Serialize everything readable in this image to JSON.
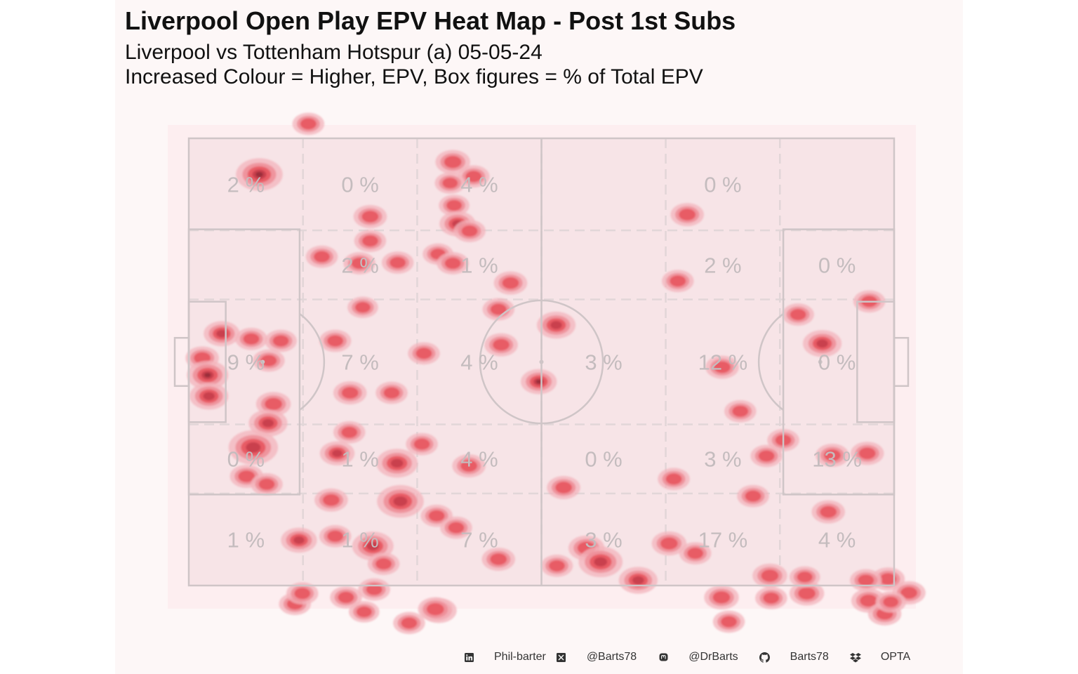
{
  "header": {
    "title": "Liverpool Open Play EPV Heat Map - Post 1st Subs",
    "subtitle_line1": "Liverpool vs Tottenham Hotspur (a) 05-05-24",
    "subtitle_line2": "Increased Colour = Higher, EPV, Box figures = % of Total EPV"
  },
  "footer": {
    "items": [
      {
        "icon": "linkedin-icon",
        "label": "Phil-barter"
      },
      {
        "icon": "x-twitter-icon",
        "label": "@Barts78"
      },
      {
        "icon": "mastodon-icon",
        "label": "@DrBarts"
      },
      {
        "icon": "github-icon",
        "label": "Barts78"
      },
      {
        "icon": "dropbox-icon",
        "label": "OPTA"
      }
    ]
  },
  "colors": {
    "panel_background": "#fdf7f7",
    "pitch_background": "#fdeef0",
    "pitch_lines": "#cfc5c7",
    "zone_dash": "#e2d6d8",
    "zone_label": "#c4bcbe",
    "heat_low": "#f3b4bc",
    "heat_mid": "#e85a62",
    "heat_high": "#9a2d3a"
  },
  "chart_data": {
    "type": "heatmap",
    "title": "Liverpool Open Play EPV Heat Map - Post 1st Subs",
    "x_range": [
      0,
      105
    ],
    "y_range": [
      0,
      68
    ],
    "zone_x_edges": [
      0,
      17,
      34,
      52.5,
      71,
      88,
      105
    ],
    "zone_y_edges": [
      0,
      14,
      24.5,
      43.5,
      54,
      68
    ],
    "zone_rows": [
      [
        "2 %",
        "0 %",
        "4 %",
        "",
        "0 %",
        ""
      ],
      [
        "",
        "2 %",
        "1 %",
        "",
        "2 %",
        "0 %"
      ],
      [
        "9 %",
        "7 %",
        "4 %",
        "3 %",
        "12 %",
        "0 %"
      ],
      [
        "0 %",
        "1 %",
        "4 %",
        "0 %",
        "3 %",
        "13 %"
      ],
      [
        "1 %",
        "1 %",
        "7 %",
        "3 %",
        "17 %",
        "4 %"
      ]
    ],
    "hotspots": [
      [
        17.8,
        70.2,
        1.1,
        0.28
      ],
      [
        10.5,
        62.5,
        2.2,
        0.85
      ],
      [
        27.0,
        56.1,
        1.2,
        0.45
      ],
      [
        39.3,
        64.4,
        1.3,
        0.55
      ],
      [
        42.4,
        62.2,
        1.1,
        0.45
      ],
      [
        38.9,
        61.2,
        1.0,
        0.4
      ],
      [
        39.5,
        57.8,
        1.0,
        0.42
      ],
      [
        40.0,
        55.0,
        1.4,
        0.6
      ],
      [
        41.8,
        53.9,
        1.1,
        0.45
      ],
      [
        74.2,
        56.4,
        1.2,
        0.5
      ],
      [
        19.8,
        50.0,
        1.1,
        0.45
      ],
      [
        27.0,
        52.4,
        1.1,
        0.45
      ],
      [
        25.4,
        49.0,
        1.1,
        0.45
      ],
      [
        31.1,
        49.1,
        1.1,
        0.45
      ],
      [
        37.1,
        50.4,
        1.0,
        0.42
      ],
      [
        39.3,
        49.0,
        1.1,
        0.45
      ],
      [
        47.9,
        46.0,
        1.2,
        0.5
      ],
      [
        72.8,
        46.3,
        1.1,
        0.45
      ],
      [
        46.1,
        42.0,
        1.1,
        0.45
      ],
      [
        25.9,
        42.3,
        1.0,
        0.42
      ],
      [
        90.7,
        41.2,
        1.1,
        0.45
      ],
      [
        101.3,
        43.2,
        1.1,
        0.45
      ],
      [
        4.9,
        38.3,
        1.4,
        0.65
      ],
      [
        9.3,
        37.5,
        1.1,
        0.45
      ],
      [
        13.7,
        37.2,
        1.1,
        0.45
      ],
      [
        11.9,
        34.2,
        1.1,
        0.45
      ],
      [
        2.0,
        34.6,
        1.2,
        0.55
      ],
      [
        2.8,
        32.0,
        1.8,
        0.85
      ],
      [
        3.0,
        28.8,
        1.6,
        0.75
      ],
      [
        21.8,
        37.2,
        1.1,
        0.45
      ],
      [
        35.0,
        35.3,
        1.1,
        0.45
      ],
      [
        46.5,
        36.6,
        1.2,
        0.5
      ],
      [
        54.7,
        39.6,
        1.6,
        0.7
      ],
      [
        52.1,
        31.0,
        1.4,
        0.95
      ],
      [
        79.4,
        33.2,
        1.2,
        0.55
      ],
      [
        94.3,
        36.8,
        1.6,
        0.75
      ],
      [
        24.0,
        29.3,
        1.2,
        0.5
      ],
      [
        30.2,
        29.3,
        1.1,
        0.45
      ],
      [
        12.6,
        27.6,
        1.3,
        0.55
      ],
      [
        11.8,
        24.7,
        1.6,
        0.7
      ],
      [
        9.6,
        21.0,
        2.4,
        0.8
      ],
      [
        8.6,
        16.6,
        1.2,
        0.5
      ],
      [
        11.6,
        15.4,
        1.1,
        0.45
      ],
      [
        23.9,
        23.3,
        1.1,
        0.45
      ],
      [
        22.1,
        20.1,
        1.3,
        0.6
      ],
      [
        31.0,
        18.6,
        1.8,
        0.65
      ],
      [
        34.7,
        21.5,
        1.1,
        0.45
      ],
      [
        41.7,
        18.2,
        1.2,
        0.5
      ],
      [
        82.1,
        26.5,
        1.1,
        0.45
      ],
      [
        88.5,
        22.1,
        1.1,
        0.45
      ],
      [
        86.0,
        19.7,
        1.1,
        0.45
      ],
      [
        95.8,
        19.8,
        1.2,
        0.5
      ],
      [
        101.0,
        20.1,
        1.2,
        0.5
      ],
      [
        55.8,
        14.9,
        1.2,
        0.5
      ],
      [
        72.2,
        16.2,
        1.1,
        0.45
      ],
      [
        84.0,
        13.6,
        1.1,
        0.45
      ],
      [
        95.2,
        11.2,
        1.2,
        0.5
      ],
      [
        21.2,
        13.0,
        1.2,
        0.5
      ],
      [
        31.5,
        12.8,
        2.2,
        0.75
      ],
      [
        36.9,
        10.6,
        1.1,
        0.45
      ],
      [
        39.8,
        8.8,
        1.1,
        0.45
      ],
      [
        21.8,
        7.5,
        1.1,
        0.45
      ],
      [
        27.4,
        6.0,
        1.8,
        0.65
      ],
      [
        16.4,
        6.9,
        1.4,
        0.6
      ],
      [
        29.0,
        3.3,
        1.1,
        0.45
      ],
      [
        46.1,
        4.0,
        1.2,
        0.5
      ],
      [
        59.2,
        5.7,
        1.4,
        0.5
      ],
      [
        61.3,
        3.6,
        2.0,
        0.7
      ],
      [
        54.8,
        3.0,
        1.1,
        0.45
      ],
      [
        66.9,
        0.8,
        1.6,
        0.65
      ],
      [
        71.5,
        6.4,
        1.3,
        0.55
      ],
      [
        75.4,
        4.9,
        1.1,
        0.45
      ],
      [
        86.5,
        1.5,
        1.3,
        0.55
      ],
      [
        79.3,
        -1.8,
        1.3,
        0.55
      ],
      [
        86.7,
        -1.9,
        1.1,
        0.45
      ],
      [
        92.0,
        -1.2,
        1.3,
        0.55
      ],
      [
        101.2,
        -2.3,
        1.3,
        0.55
      ],
      [
        107.2,
        -1.1,
        1.2,
        0.5
      ],
      [
        103.6,
        -4.3,
        1.2,
        0.5
      ],
      [
        104.5,
        -2.5,
        1.0,
        0.45
      ],
      [
        15.8,
        -2.8,
        1.1,
        0.45
      ],
      [
        23.4,
        -1.8,
        1.1,
        0.45
      ],
      [
        27.6,
        -0.6,
        1.1,
        0.45
      ],
      [
        32.8,
        -5.7,
        1.1,
        0.45
      ],
      [
        26.1,
        -4.0,
        1.0,
        0.42
      ],
      [
        37.2,
        -3.8,
        1.4,
        0.6
      ],
      [
        36.7,
        -3.6,
        1.3,
        0.5
      ],
      [
        80.4,
        -5.5,
        1.1,
        0.45
      ],
      [
        16.9,
        -1.2,
        1.1,
        0.45
      ],
      [
        91.7,
        1.3,
        1.0,
        0.42
      ],
      [
        104.1,
        1.0,
        1.2,
        0.55
      ],
      [
        100.8,
        0.8,
        1.1,
        0.45
      ]
    ]
  }
}
